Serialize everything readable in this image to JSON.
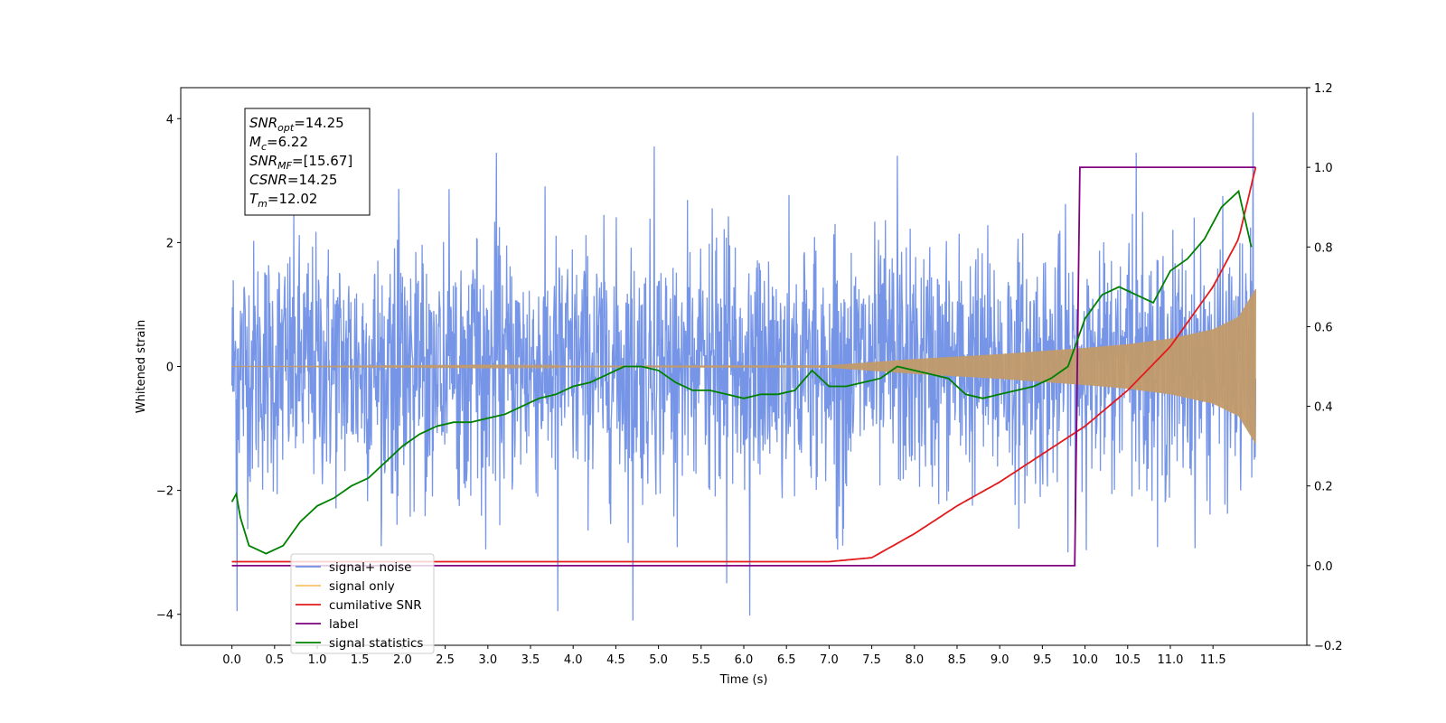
{
  "chart_data": {
    "type": "line",
    "xlabel": "Time (s)",
    "ylabel": "Whitened strain",
    "xlim": [
      -0.6,
      12.6
    ],
    "ylim": [
      -4.5,
      4.5
    ],
    "y2lim": [
      -0.2,
      1.2
    ],
    "x_ticks": [
      "0.0",
      "0.5",
      "1.0",
      "1.5",
      "2.0",
      "2.5",
      "3.0",
      "3.5",
      "4.0",
      "4.5",
      "5.0",
      "5.5",
      "6.0",
      "6.5",
      "7.0",
      "7.5",
      "8.0",
      "8.5",
      "9.0",
      "9.5",
      "10.0",
      "10.5",
      "11.0",
      "11.5"
    ],
    "y_ticks": [
      "4",
      "2",
      "0",
      "−2",
      "−4"
    ],
    "y2_ticks": [
      "1.2",
      "1.0",
      "0.8",
      "0.6",
      "0.4",
      "0.2",
      "0.0",
      "−0.2"
    ],
    "annotation": [
      {
        "base": "SNR",
        "sub": "opt",
        "value": "=14.25"
      },
      {
        "base": "M",
        "sub": "c",
        "value": "=6.22"
      },
      {
        "base": "SNR",
        "sub": "MF",
        "value": "=[15.67]"
      },
      {
        "base": "CSNR",
        "sub": "",
        "value": "=14.25"
      },
      {
        "base": "T",
        "sub": "m",
        "value": "=12.02"
      }
    ],
    "legend_placement": "lower-left",
    "series": [
      {
        "name": "signal+ noise",
        "color": "#6f8fe6",
        "axis": "left",
        "noise_std": 1.0,
        "extreme_spikes": [
          [
            0.06,
            -3.95
          ],
          [
            4.7,
            -4.1
          ],
          [
            6.07,
            -4.02
          ],
          [
            3.82,
            -3.95
          ],
          [
            11.97,
            4.1
          ],
          [
            5.8,
            -3.5
          ],
          [
            3.1,
            3.45
          ],
          [
            4.95,
            3.55
          ],
          [
            7.8,
            3.4
          ],
          [
            10.6,
            3.45
          ]
        ]
      },
      {
        "name": "signal only",
        "color": "#f5b84d",
        "axis": "left",
        "envelope": {
          "x": [
            0,
            7.0,
            8.0,
            9.0,
            10.0,
            10.5,
            11.0,
            11.5,
            11.8,
            12.0
          ],
          "amp": [
            0.0,
            0.02,
            0.12,
            0.2,
            0.3,
            0.36,
            0.45,
            0.6,
            0.8,
            1.25
          ]
        }
      },
      {
        "name": "cumilative SNR",
        "color": "#e31a1c",
        "axis": "right",
        "x": [
          0,
          7.0,
          7.5,
          8.0,
          8.5,
          9.0,
          9.5,
          10.0,
          10.5,
          11.0,
          11.5,
          11.8,
          12.0
        ],
        "y": [
          0.01,
          0.01,
          0.02,
          0.08,
          0.15,
          0.21,
          0.28,
          0.35,
          0.44,
          0.55,
          0.7,
          0.82,
          1.0
        ]
      },
      {
        "name": "label",
        "color": "#800080",
        "axis": "right",
        "x": [
          0,
          9.88,
          9.94,
          12.0
        ],
        "y": [
          0.0,
          0.0,
          1.0,
          1.0
        ]
      },
      {
        "name": "signal statistics",
        "color": "#008000",
        "axis": "right",
        "x": [
          0,
          0.05,
          0.1,
          0.2,
          0.3,
          0.4,
          0.5,
          0.6,
          0.7,
          0.8,
          0.9,
          1.0,
          1.2,
          1.4,
          1.6,
          1.8,
          2.0,
          2.2,
          2.4,
          2.6,
          2.8,
          3.0,
          3.2,
          3.4,
          3.6,
          3.8,
          4.0,
          4.2,
          4.4,
          4.6,
          4.8,
          5.0,
          5.2,
          5.4,
          5.6,
          5.8,
          6.0,
          6.2,
          6.4,
          6.6,
          6.8,
          7.0,
          7.2,
          7.4,
          7.6,
          7.8,
          8.0,
          8.2,
          8.4,
          8.6,
          8.8,
          9.0,
          9.2,
          9.4,
          9.6,
          9.8,
          10.0,
          10.2,
          10.4,
          10.6,
          10.8,
          11.0,
          11.2,
          11.4,
          11.6,
          11.8,
          11.95
        ],
        "y": [
          0.16,
          0.18,
          0.12,
          0.05,
          0.04,
          0.03,
          0.04,
          0.05,
          0.08,
          0.11,
          0.13,
          0.15,
          0.17,
          0.2,
          0.22,
          0.26,
          0.3,
          0.33,
          0.35,
          0.36,
          0.36,
          0.37,
          0.38,
          0.4,
          0.42,
          0.43,
          0.45,
          0.46,
          0.48,
          0.5,
          0.5,
          0.49,
          0.46,
          0.44,
          0.44,
          0.43,
          0.42,
          0.43,
          0.43,
          0.44,
          0.49,
          0.45,
          0.45,
          0.46,
          0.47,
          0.5,
          0.49,
          0.48,
          0.47,
          0.43,
          0.42,
          0.43,
          0.44,
          0.45,
          0.47,
          0.5,
          0.62,
          0.68,
          0.7,
          0.68,
          0.66,
          0.74,
          0.77,
          0.82,
          0.9,
          0.94,
          0.8
        ]
      }
    ]
  }
}
